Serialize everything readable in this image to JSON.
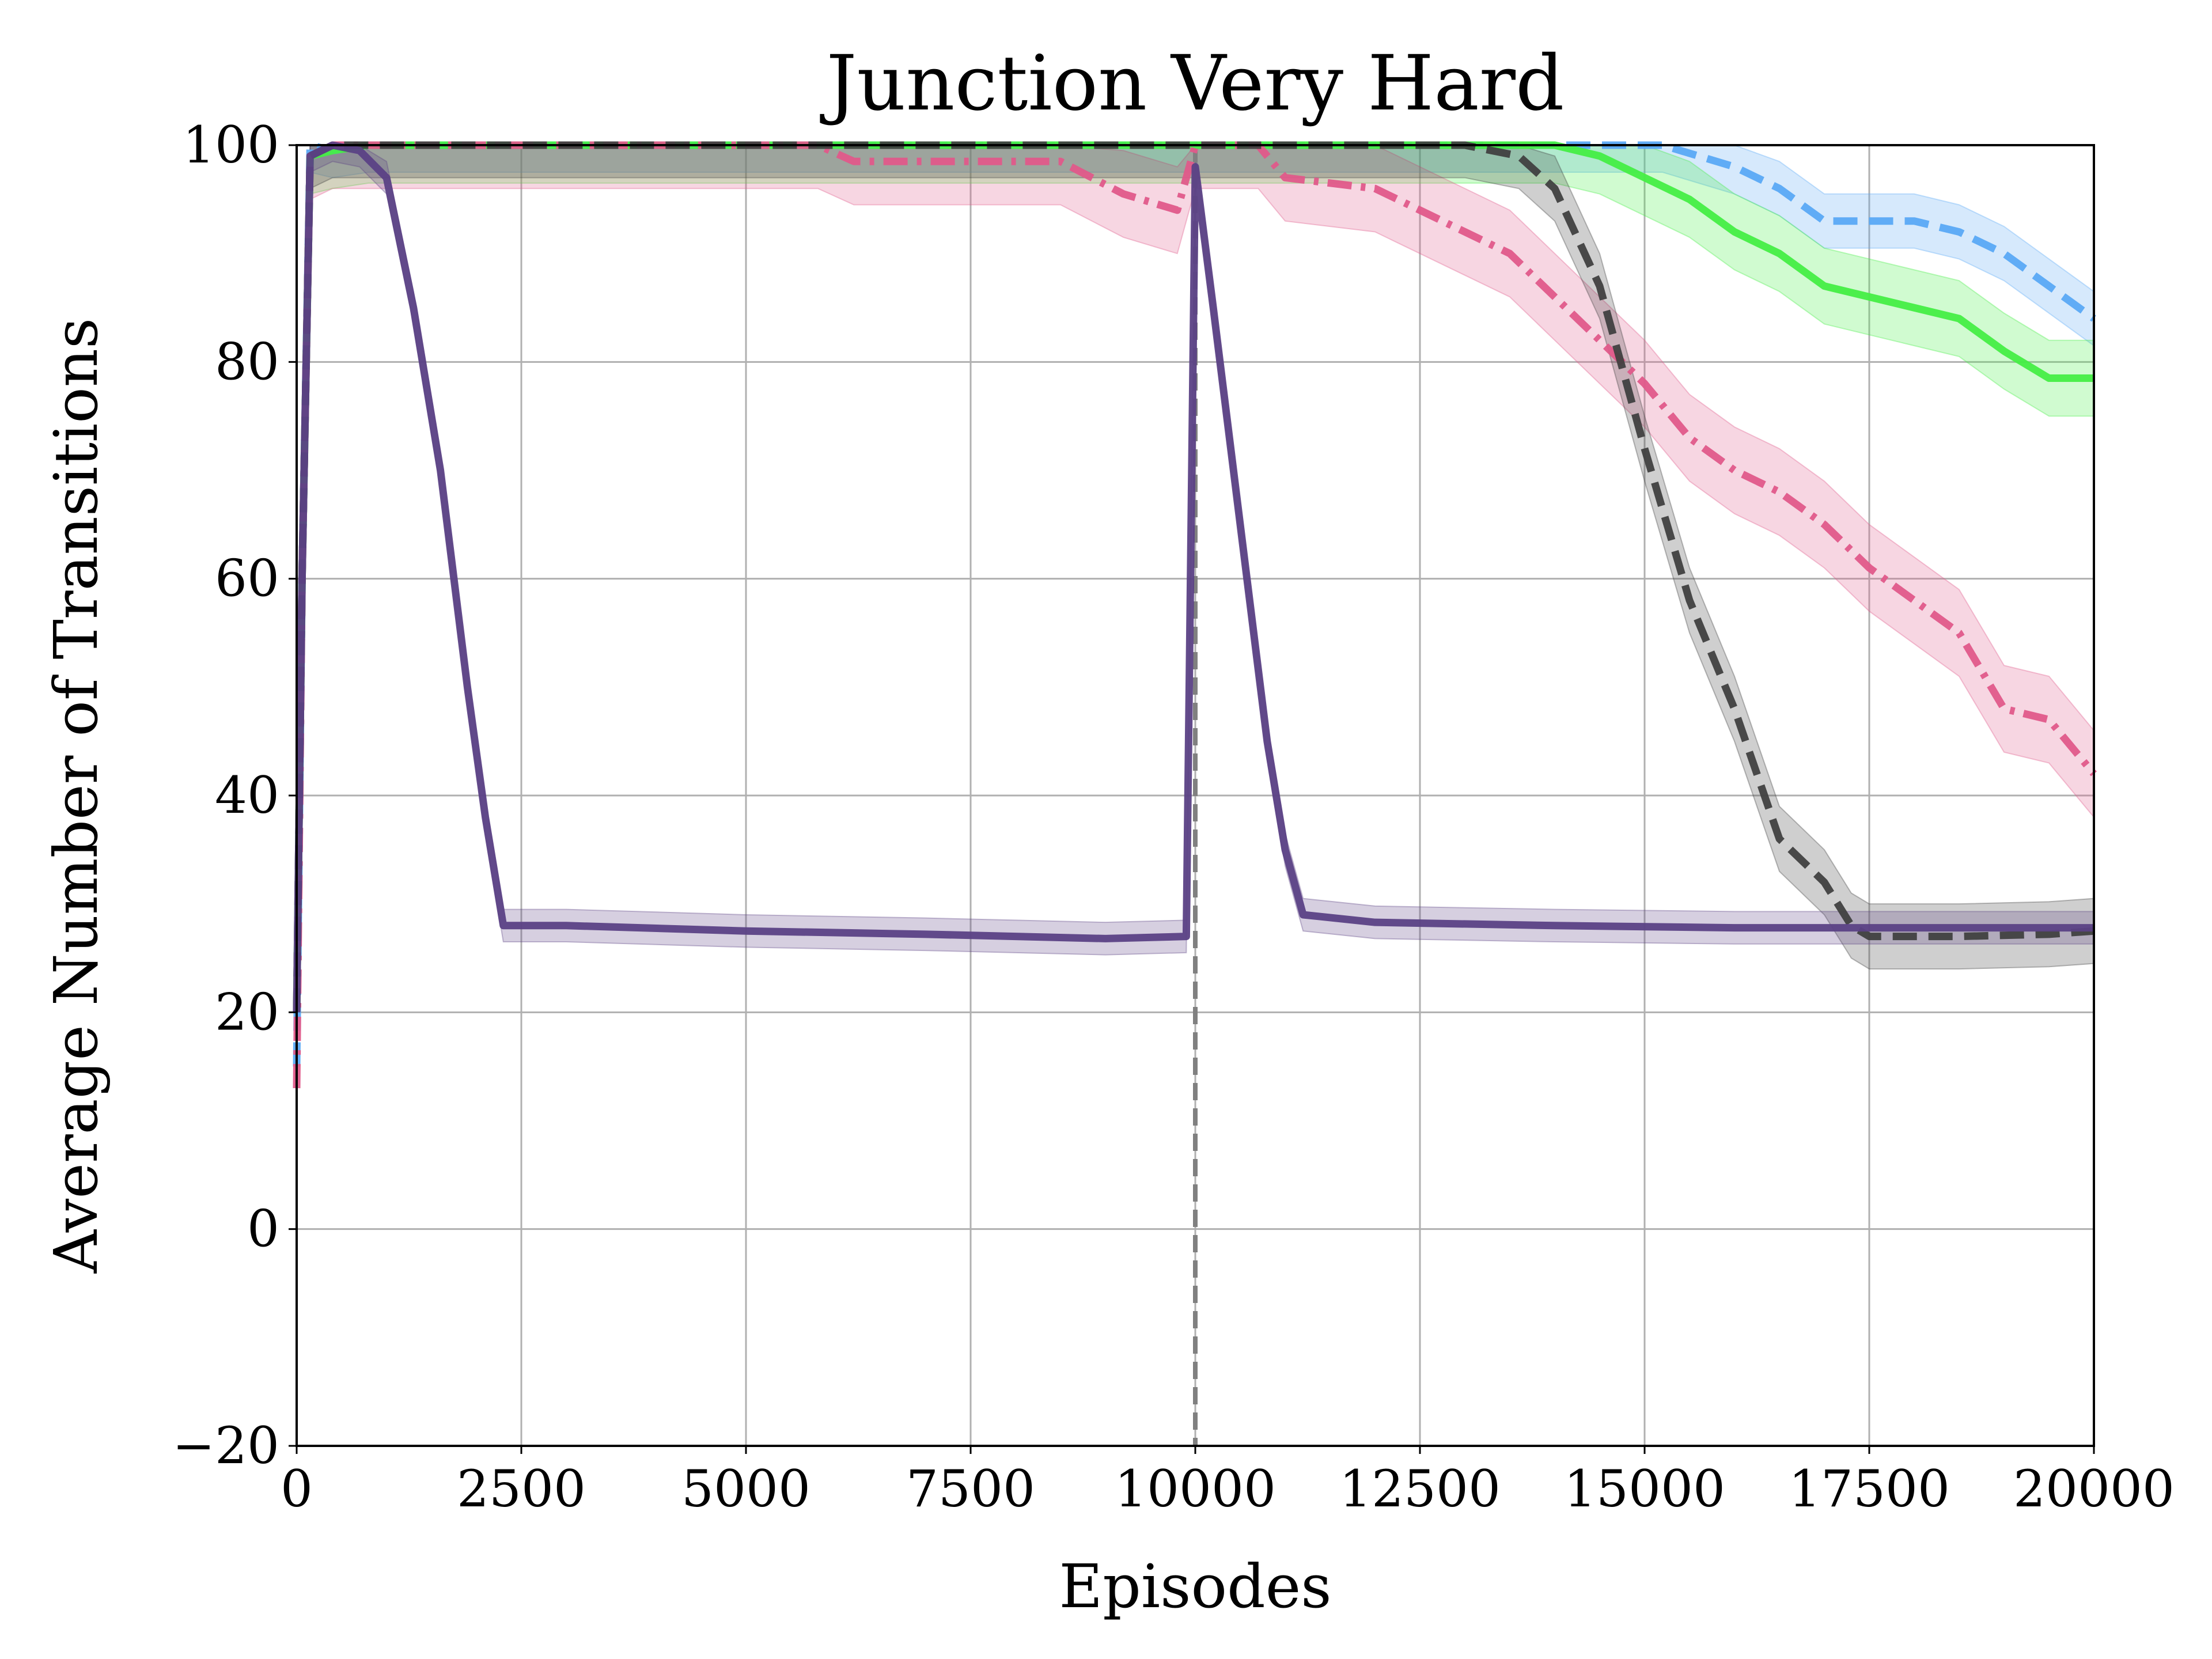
{
  "chart_data": {
    "type": "line",
    "title": "Junction Very Hard",
    "xlabel": "Episodes",
    "ylabel": "Average Number of Transitions",
    "xlim": [
      0,
      20000
    ],
    "ylim": [
      -20,
      100
    ],
    "xticks": [
      0,
      2500,
      5000,
      7500,
      10000,
      12500,
      15000,
      17500,
      20000
    ],
    "xtick_labels": [
      "0",
      "2500",
      "5000",
      "7500",
      "10000",
      "12500",
      "15000",
      "17500",
      "20000"
    ],
    "yticks": [
      -20,
      0,
      20,
      40,
      60,
      80,
      100
    ],
    "ytick_labels": [
      "−20",
      "0",
      "20",
      "40",
      "60",
      "80",
      "100"
    ],
    "grid": true,
    "legend": "none",
    "vertical_marker": {
      "x": 10000,
      "color": "#808080",
      "style": "dashed"
    },
    "series": [
      {
        "color": "#5aa9f5",
        "style": "dashed",
        "points": [
          [
            0,
            15
          ],
          [
            60,
            60
          ],
          [
            150,
            100
          ],
          [
            400,
            99.5
          ],
          [
            800,
            100
          ],
          [
            2000,
            100
          ],
          [
            5000,
            100
          ],
          [
            8000,
            100
          ],
          [
            10000,
            100
          ],
          [
            12000,
            100
          ],
          [
            14000,
            100
          ],
          [
            15200,
            100
          ],
          [
            15600,
            99
          ],
          [
            16000,
            98
          ],
          [
            16500,
            96
          ],
          [
            17000,
            93
          ],
          [
            17500,
            93
          ],
          [
            18000,
            93
          ],
          [
            18500,
            92
          ],
          [
            19000,
            90
          ],
          [
            19500,
            87
          ],
          [
            20000,
            84
          ]
        ],
        "band": 2.5
      },
      {
        "color": "#44ee44",
        "style": "solid",
        "points": [
          [
            0,
            20
          ],
          [
            60,
            60
          ],
          [
            150,
            99
          ],
          [
            400,
            99.5
          ],
          [
            800,
            100
          ],
          [
            2000,
            100
          ],
          [
            5000,
            100
          ],
          [
            8000,
            100
          ],
          [
            10000,
            100
          ],
          [
            12000,
            100
          ],
          [
            14000,
            100
          ],
          [
            14500,
            99
          ],
          [
            15000,
            97
          ],
          [
            15500,
            95
          ],
          [
            16000,
            92
          ],
          [
            16500,
            90
          ],
          [
            17000,
            87
          ],
          [
            17500,
            86
          ],
          [
            18000,
            85
          ],
          [
            18500,
            84
          ],
          [
            19000,
            81
          ],
          [
            19500,
            78.5
          ],
          [
            20000,
            78.5
          ]
        ],
        "band": 3.5
      },
      {
        "color": "#e05a8a",
        "style": "dashdot",
        "points": [
          [
            0,
            13
          ],
          [
            60,
            60
          ],
          [
            150,
            99
          ],
          [
            400,
            100
          ],
          [
            2000,
            100
          ],
          [
            5800,
            100
          ],
          [
            6200,
            98.5
          ],
          [
            7000,
            98.5
          ],
          [
            8500,
            98.5
          ],
          [
            9200,
            95.5
          ],
          [
            9800,
            94
          ],
          [
            10000,
            100
          ],
          [
            10700,
            100
          ],
          [
            11000,
            97
          ],
          [
            12000,
            96
          ],
          [
            12500,
            94
          ],
          [
            13000,
            92
          ],
          [
            13500,
            90
          ],
          [
            14000,
            86
          ],
          [
            14500,
            82
          ],
          [
            15000,
            78
          ],
          [
            15500,
            73
          ],
          [
            16000,
            70
          ],
          [
            16500,
            68
          ],
          [
            17000,
            65
          ],
          [
            17500,
            61
          ],
          [
            18000,
            58
          ],
          [
            18500,
            55
          ],
          [
            19000,
            48
          ],
          [
            19500,
            47
          ],
          [
            20000,
            42
          ]
        ],
        "band": 4
      },
      {
        "color": "#404040",
        "style": "dashed",
        "points": [
          [
            0,
            20
          ],
          [
            60,
            60
          ],
          [
            150,
            99
          ],
          [
            400,
            100
          ],
          [
            2000,
            100
          ],
          [
            5000,
            100
          ],
          [
            8000,
            100
          ],
          [
            10000,
            100
          ],
          [
            12000,
            100
          ],
          [
            13000,
            100
          ],
          [
            13600,
            99
          ],
          [
            14000,
            96
          ],
          [
            14500,
            87
          ],
          [
            15000,
            72
          ],
          [
            15500,
            58
          ],
          [
            16000,
            48
          ],
          [
            16500,
            36
          ],
          [
            17000,
            32
          ],
          [
            17300,
            28
          ],
          [
            17500,
            27
          ],
          [
            18500,
            27
          ],
          [
            19500,
            27.2
          ],
          [
            20000,
            27.5
          ]
        ],
        "band": 3
      },
      {
        "color": "#5b4185",
        "style": "solid",
        "points": [
          [
            0,
            20
          ],
          [
            60,
            60
          ],
          [
            150,
            99
          ],
          [
            400,
            100
          ],
          [
            700,
            99.5
          ],
          [
            1000,
            97
          ],
          [
            1300,
            85
          ],
          [
            1600,
            70
          ],
          [
            1900,
            50
          ],
          [
            2100,
            38
          ],
          [
            2300,
            28
          ],
          [
            3000,
            28
          ],
          [
            5000,
            27.5
          ],
          [
            7000,
            27.2
          ],
          [
            8000,
            27
          ],
          [
            9000,
            26.8
          ],
          [
            9900,
            27
          ],
          [
            10000,
            98
          ],
          [
            10200,
            85
          ],
          [
            10500,
            65
          ],
          [
            10800,
            45
          ],
          [
            11000,
            35
          ],
          [
            11200,
            29
          ],
          [
            12000,
            28.3
          ],
          [
            14000,
            28
          ],
          [
            16000,
            27.8
          ],
          [
            18000,
            27.8
          ],
          [
            20000,
            27.8
          ]
        ],
        "band": 1.5
      }
    ]
  }
}
